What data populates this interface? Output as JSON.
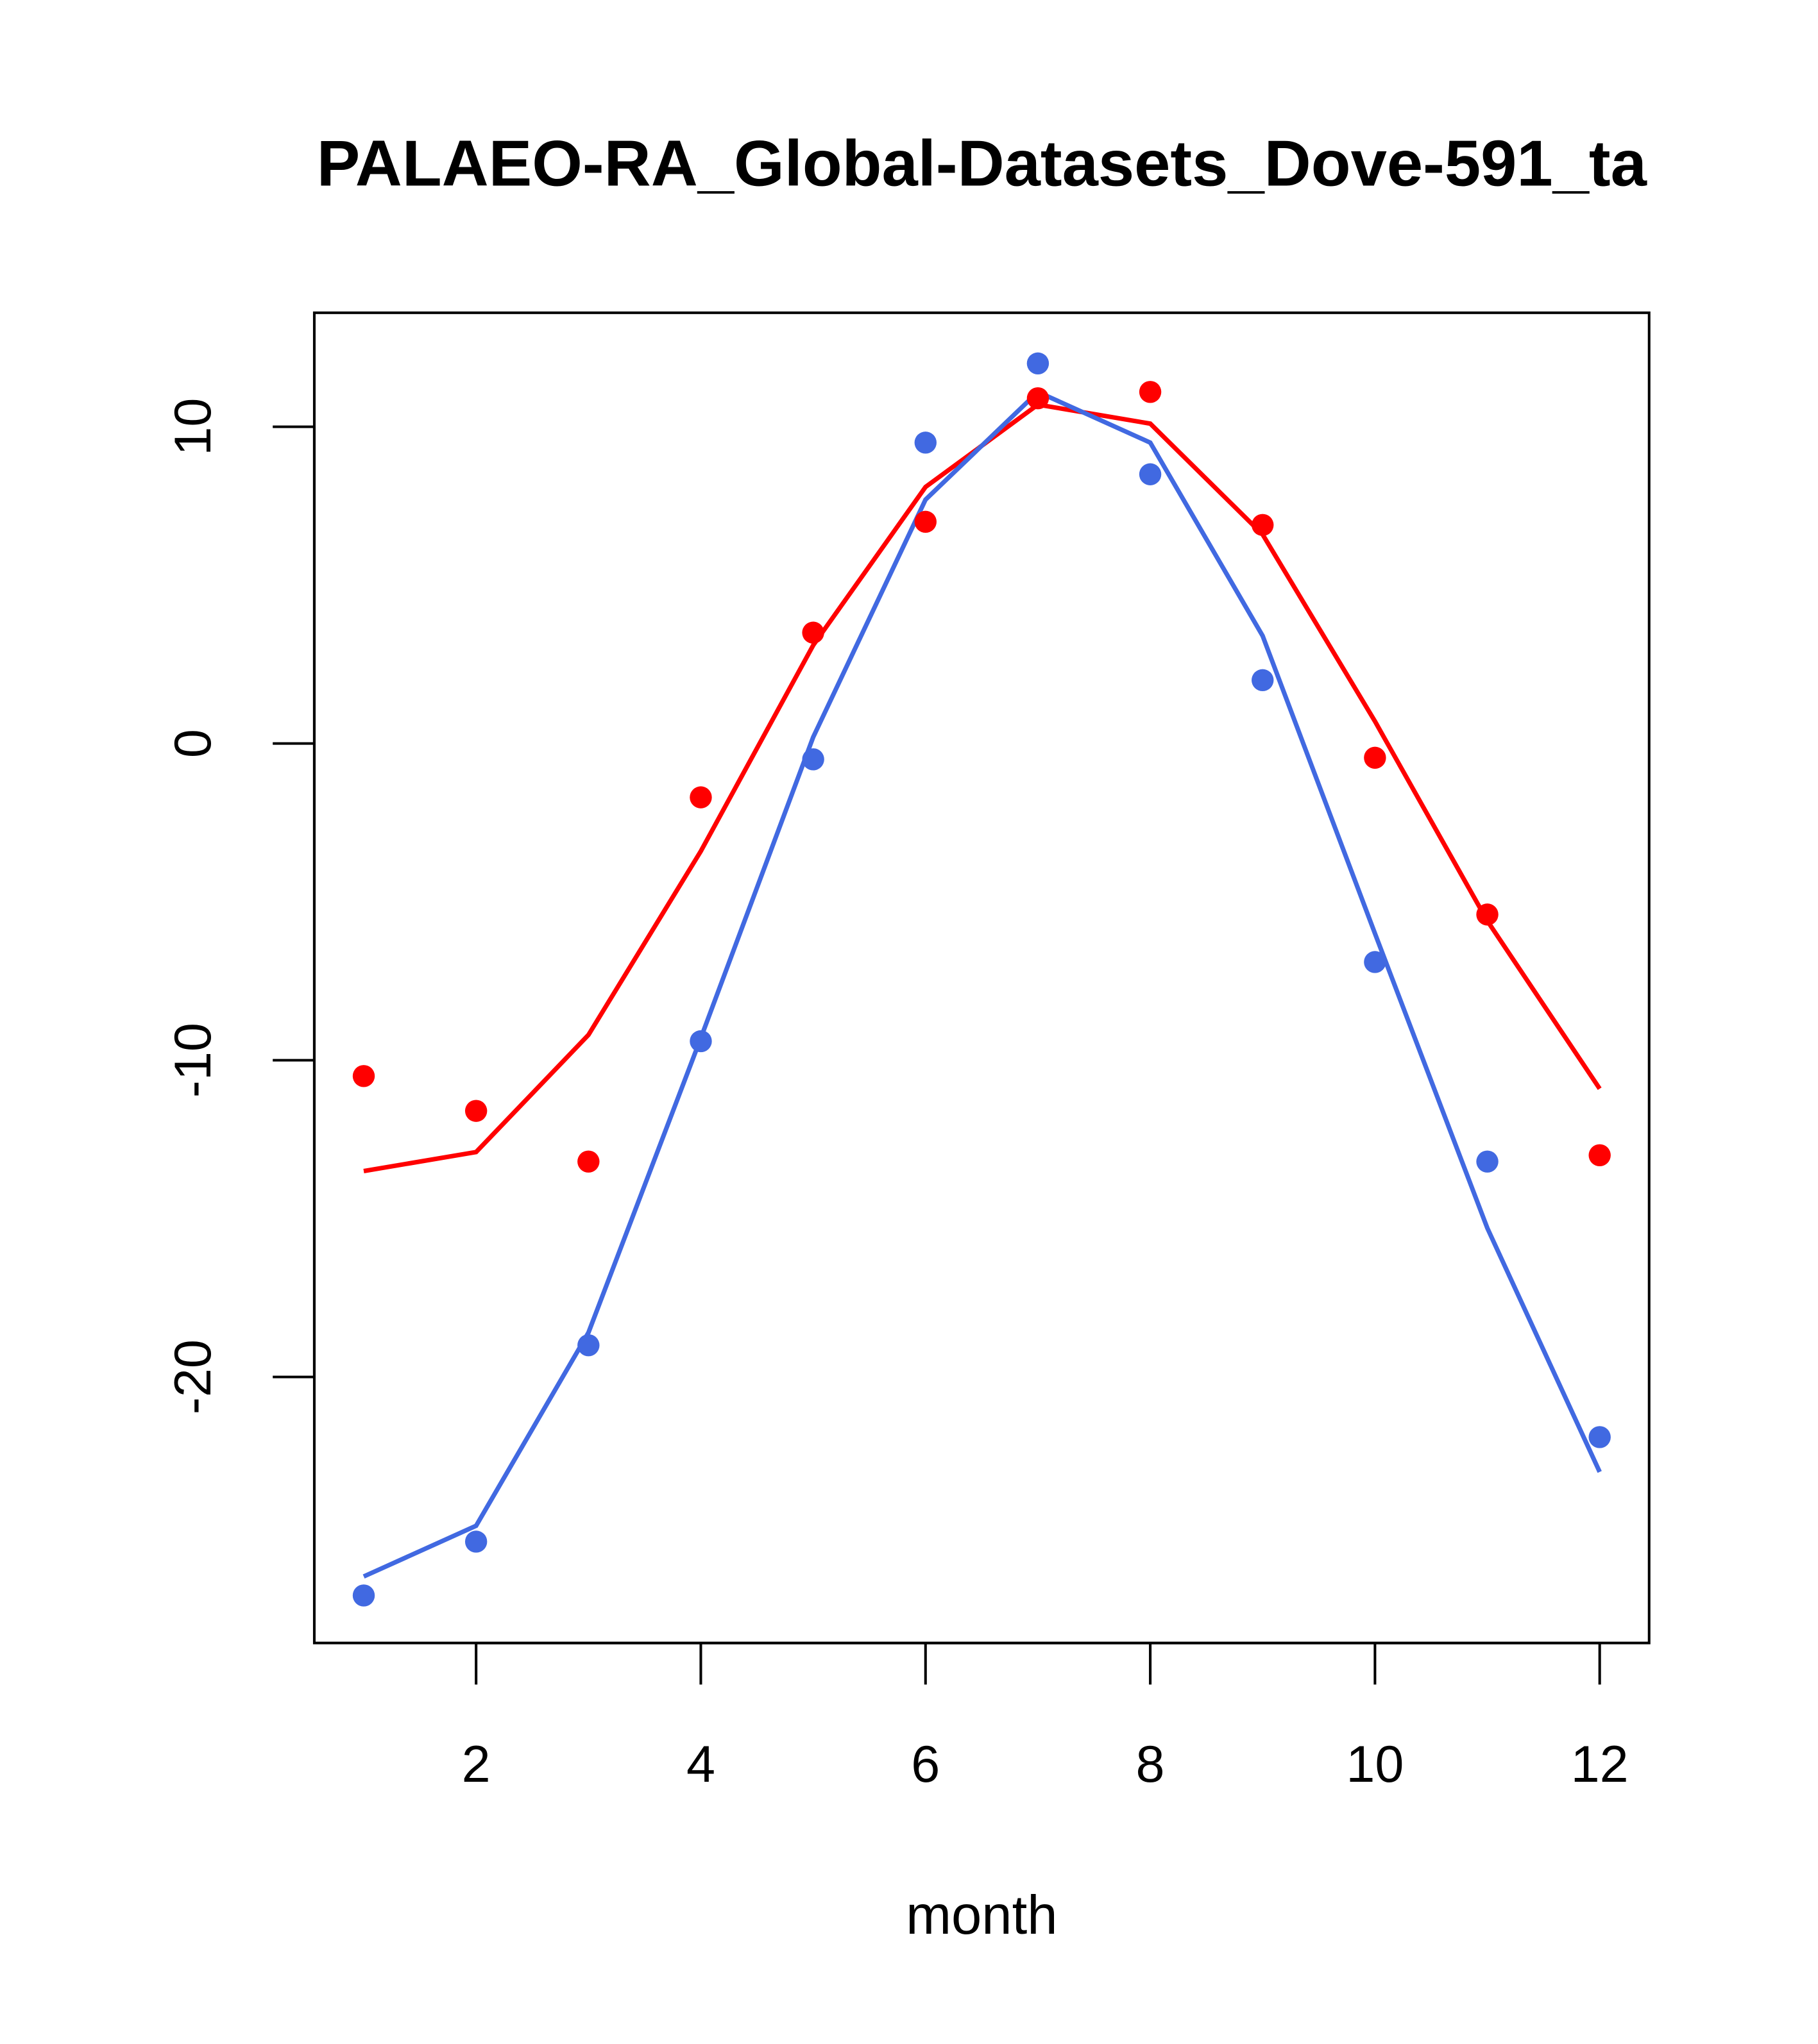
{
  "chart_data": {
    "type": "line",
    "title": "PALAEO-RA_Global-Datasets_Dove-591_ta",
    "xlabel": "month",
    "ylabel": "",
    "xlim": [
      0.56,
      12.44
    ],
    "ylim": [
      -28.4,
      13.6
    ],
    "xticks": [
      2,
      4,
      6,
      8,
      10,
      12
    ],
    "yticks": [
      -20,
      -10,
      0,
      10
    ],
    "grid": false,
    "legend": "none",
    "x": [
      1,
      2,
      3,
      4,
      5,
      6,
      7,
      8,
      9,
      10,
      11,
      12
    ],
    "series": [
      {
        "name": "red points",
        "kind": "points",
        "color": "#ff0000",
        "values": [
          -10.5,
          -11.6,
          -13.2,
          -1.7,
          3.5,
          7.0,
          10.9,
          11.1,
          6.9,
          -0.45,
          -5.4,
          -13.0
        ]
      },
      {
        "name": "red line",
        "kind": "line",
        "color": "#ff0000",
        "values": [
          -13.5,
          -12.9,
          -9.2,
          -3.4,
          3.1,
          8.1,
          10.7,
          10.1,
          6.6,
          0.7,
          -5.6,
          -10.9
        ]
      },
      {
        "name": "blue points",
        "kind": "points",
        "color": "#4169e1",
        "values": [
          -26.9,
          -25.2,
          -19.0,
          -9.4,
          -0.5,
          9.5,
          12.0,
          8.5,
          2.0,
          -6.9,
          -13.2,
          -21.9
        ]
      },
      {
        "name": "blue line",
        "kind": "line",
        "color": "#4169e1",
        "values": [
          -26.3,
          -24.7,
          -18.6,
          -9.3,
          0.2,
          7.7,
          11.1,
          9.5,
          3.4,
          -6.0,
          -15.3,
          -23.0
        ]
      }
    ]
  }
}
